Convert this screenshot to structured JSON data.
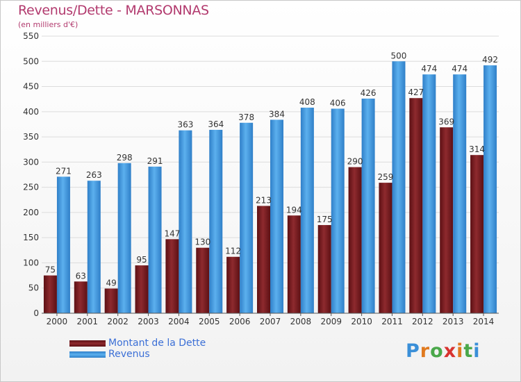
{
  "header": {
    "title": "Revenus/Dette - MARSONNAS",
    "subtitle": "(en milliers d'€)"
  },
  "colors": {
    "dette": "#7a1e22",
    "revenus": "#3a93dd",
    "title": "#b23a6e",
    "legend_text": "#3b6fd6"
  },
  "legend": {
    "dette_label": "Montant de la Dette",
    "revenus_label": "Revenus"
  },
  "logo": {
    "text": "Proxiti"
  },
  "chart_data": {
    "type": "bar",
    "categories": [
      "2000",
      "2001",
      "2002",
      "2003",
      "2004",
      "2005",
      "2006",
      "2007",
      "2008",
      "2009",
      "2010",
      "2011",
      "2012",
      "2013",
      "2014"
    ],
    "series": [
      {
        "name": "Montant de la Dette",
        "values": [
          75,
          63,
          49,
          95,
          147,
          130,
          112,
          213,
          194,
          175,
          290,
          259,
          427,
          369,
          314
        ]
      },
      {
        "name": "Revenus",
        "values": [
          271,
          263,
          298,
          291,
          363,
          364,
          378,
          384,
          408,
          406,
          426,
          500,
          474,
          474,
          492
        ]
      }
    ],
    "title": "Revenus/Dette - MARSONNAS",
    "subtitle": "(en milliers d'€)",
    "ylim": [
      0,
      550
    ],
    "yticks": [
      0,
      50,
      100,
      150,
      200,
      250,
      300,
      350,
      400,
      450,
      500,
      550
    ],
    "grid": true,
    "legend_position": "bottom-left"
  }
}
